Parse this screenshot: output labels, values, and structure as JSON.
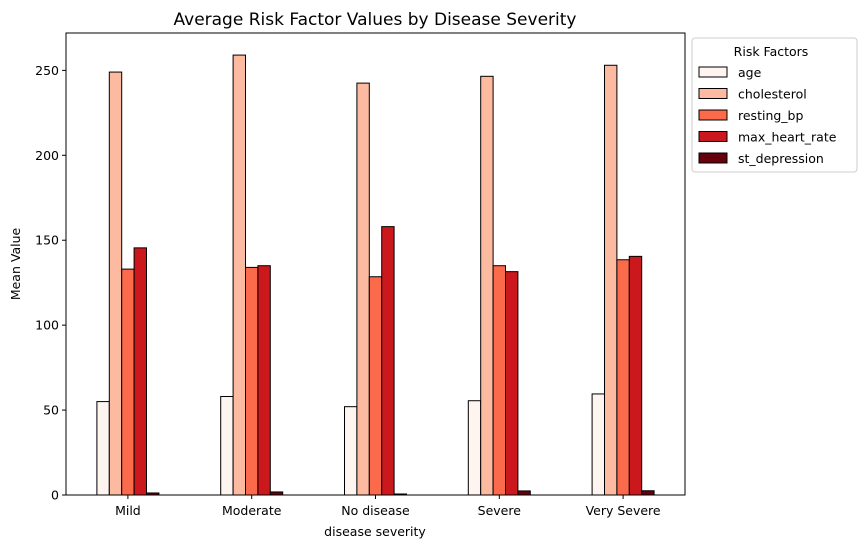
{
  "chart_data": {
    "type": "bar",
    "title": "Average Risk Factor Values by Disease Severity",
    "xlabel": "disease severity",
    "ylabel": "Mean Value",
    "categories": [
      "Mild",
      "Moderate",
      "No disease",
      "Severe",
      "Very Severe"
    ],
    "ylim": [
      0,
      272
    ],
    "yticks": [
      0,
      50,
      100,
      150,
      200,
      250
    ],
    "grid": false,
    "legend": {
      "title": "Risk Factors",
      "placement": "outside-upper-right"
    },
    "series": [
      {
        "name": "age",
        "color": "#fff5f0",
        "values": [
          55,
          58,
          52,
          55.5,
          59.5
        ]
      },
      {
        "name": "cholesterol",
        "color": "#fcbba1",
        "values": [
          249,
          259,
          242.5,
          246.5,
          253
        ]
      },
      {
        "name": "resting_bp",
        "color": "#fb6a4a",
        "values": [
          133,
          134,
          128.5,
          135,
          138.5
        ]
      },
      {
        "name": "max_heart_rate",
        "color": "#cb181d",
        "values": [
          145.5,
          135,
          158,
          131.5,
          140.5
        ]
      },
      {
        "name": "st_depression",
        "color": "#67000d",
        "values": [
          1.2,
          1.8,
          0.6,
          2.4,
          2.5
        ]
      }
    ]
  }
}
